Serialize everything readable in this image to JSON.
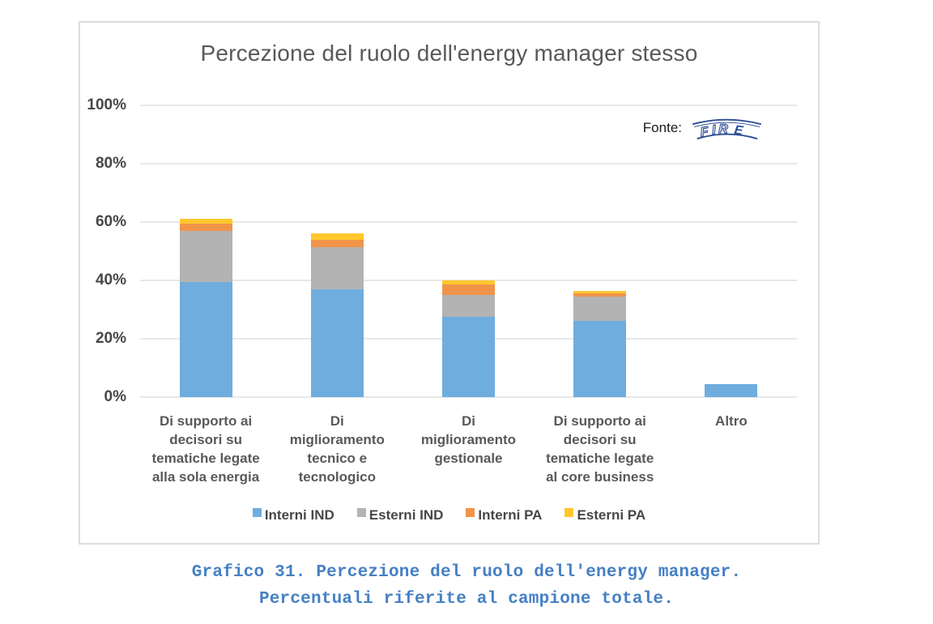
{
  "chart": {
    "title": "Percezione del ruolo dell'energy manager stesso",
    "source": {
      "label": "Fonte:",
      "logo_text": "FIRE",
      "logo_letters": [
        "F",
        "I",
        "R",
        "E"
      ],
      "logo_color": "#2e4e96"
    },
    "axes": {
      "y_ticks": [
        "100%",
        "80%",
        "60%",
        "40%",
        "20%",
        "0%"
      ],
      "y_max": 100,
      "y_step": 20
    }
  },
  "chart_data": {
    "type": "bar",
    "stacked": true,
    "title": "Percezione del ruolo dell'energy manager stesso",
    "categories": [
      "Di supporto ai\ndecisori su\ntematiche legate\nalla sola energia",
      "Di\nmiglioramento\ntecnico e\ntecnologico",
      "Di\nmiglioramento\ngestionale",
      "Di supporto ai\ndecisori su\ntematiche legate\nal core business",
      "Altro"
    ],
    "series": [
      {
        "name": "Interni IND",
        "color": "#6fadde",
        "values": [
          39.5,
          37.0,
          27.5,
          26.0,
          4.5
        ]
      },
      {
        "name": "Esterni IND",
        "color": "#b3b3b3",
        "values": [
          17.5,
          14.5,
          7.5,
          8.5,
          0
        ]
      },
      {
        "name": "Interni PA",
        "color": "#f0944a",
        "values": [
          2.5,
          2.5,
          3.5,
          1.0,
          0
        ]
      },
      {
        "name": "Esterni PA",
        "color": "#ffc72e",
        "values": [
          1.5,
          2.0,
          1.5,
          1.0,
          0
        ]
      }
    ],
    "ylim": [
      0,
      100
    ],
    "xlabel": "",
    "ylabel": "",
    "grid": true,
    "legend_position": "bottom"
  },
  "caption": {
    "line1": "Grafico 31. Percezione del ruolo dell'energy manager.",
    "line2": "Percentuali riferite al campione totale."
  }
}
